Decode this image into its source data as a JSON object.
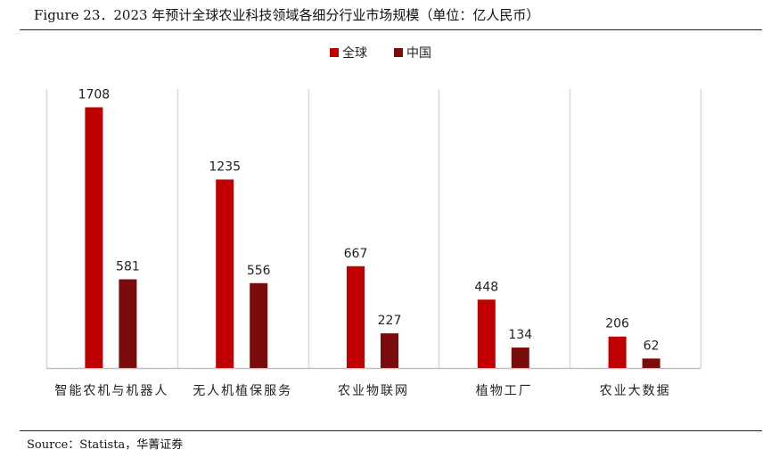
{
  "header": {
    "figure_title": "Figure 23．2023 年预计全球农业科技领域各细分行业市场规模（单位：亿人民币）"
  },
  "footer": {
    "source": "Source：Statista，华菁证券"
  },
  "colors": {
    "global": "#c00000",
    "china": "#7b0c0c",
    "grid": "#d9d9d9",
    "axis": "#bfbfbf"
  },
  "chart_data": {
    "type": "bar",
    "title": "2023 年预计全球农业科技领域各细分行业市场规模（单位：亿人民币）",
    "categories": [
      "智能农机与机器人",
      "无人机植保服务",
      "农业物联网",
      "植物工厂",
      "农业大数据"
    ],
    "series": [
      {
        "name": "全球",
        "values": [
          1708,
          1235,
          667,
          448,
          206
        ]
      },
      {
        "name": "中国",
        "values": [
          581,
          556,
          227,
          134,
          62
        ]
      }
    ],
    "ylim": [
      0,
      1800
    ],
    "xlabel": "",
    "ylabel": "",
    "legend_position": "top-center",
    "grid": "vertical-category-separators",
    "data_labels": true
  }
}
